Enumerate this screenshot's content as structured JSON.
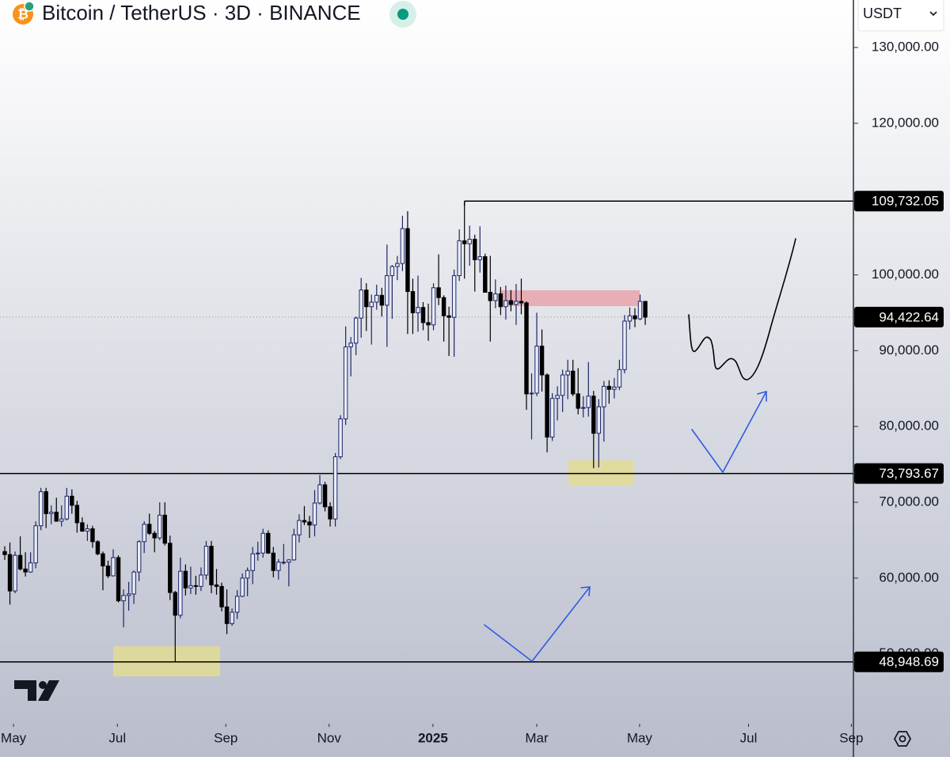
{
  "chart_data": {
    "type": "candlestick",
    "title": "Bitcoin / TetherUS · 3D · BINANCE",
    "currency": "USDT",
    "up_color": "#e9edf9",
    "up_outline": "#1c2466",
    "down_color": "#000000",
    "ylim": [
      40780,
      136260
    ],
    "xlim": [
      -0.92,
      164.3
    ],
    "yticks": [
      {
        "value": 130000,
        "label": "130,000.00"
      },
      {
        "value": 120000,
        "label": "120,000.00"
      },
      {
        "value": 100000,
        "label": "100,000.00"
      },
      {
        "value": 90000,
        "label": "90,000.00"
      },
      {
        "value": 80000,
        "label": "80,000.00"
      },
      {
        "value": 70000,
        "label": "70,000.00"
      },
      {
        "value": 60000,
        "label": "60,000.00"
      },
      {
        "value": 50000,
        "label": "50,000.00"
      }
    ],
    "xticks": [
      {
        "value": 1.7,
        "label": "May"
      },
      {
        "value": 21.8,
        "label": "Jul"
      },
      {
        "value": 42.8,
        "label": "Sep"
      },
      {
        "value": 62.8,
        "label": "Nov"
      },
      {
        "value": 82.9,
        "label": "2025"
      },
      {
        "value": 103,
        "label": "Mar"
      },
      {
        "value": 122.9,
        "label": "May"
      },
      {
        "value": 144,
        "label": "Jul"
      },
      {
        "value": 163.9,
        "label": "Sep"
      }
    ],
    "levels": [
      {
        "value": 109732.05,
        "label": "109,732.05",
        "style": "solid"
      },
      {
        "value": 94422.64,
        "label": "94,422.64",
        "style": "dotted"
      },
      {
        "value": 73793.67,
        "label": "73,793.67",
        "style": "solid"
      },
      {
        "value": 48948.69,
        "label": "48,948.69",
        "style": "solid"
      }
    ],
    "open": [
      63500,
      63100,
      58300,
      63000,
      61200,
      60800,
      62000,
      66900,
      71400,
      68500,
      68700,
      67500,
      67800,
      70800,
      69600,
      67300,
      66200,
      66500,
      64800,
      63200,
      61600,
      60300,
      62700,
      57000,
      57700,
      57900,
      60800,
      64800,
      67100,
      65900,
      65300,
      68300,
      64600,
      58100,
      55100,
      60900,
      58700,
      59000,
      58900,
      60400,
      64200,
      59100,
      58900,
      56200,
      54000,
      55500,
      57600,
      60000,
      61000,
      63200,
      63300,
      65900,
      63300,
      61000,
      62100,
      62100,
      62400,
      65700,
      67600,
      67400,
      67000,
      69900,
      72300,
      69400,
      67800,
      76000,
      81000,
      90500,
      91000,
      94300,
      98000,
      95800,
      96400,
      97300,
      96000,
      99900,
      101100,
      101500,
      106100,
      97800,
      95000,
      95700,
      93700,
      93400,
      98300,
      97000,
      94600,
      94400,
      99900,
      104500,
      104100,
      104700,
      102000,
      102400,
      97700,
      96600,
      97500,
      95800,
      96600,
      96100,
      96500,
      96300,
      84300,
      84400,
      90600,
      86800,
      78600,
      83700,
      84100,
      86800,
      87300,
      84300,
      82400,
      82500,
      84000,
      79100,
      82600,
      85300,
      84900,
      85200,
      87500,
      93900,
      94600,
      94200,
      96500
    ],
    "high": [
      64200,
      64700,
      63500,
      65500,
      63400,
      63400,
      67500,
      71900,
      71900,
      69600,
      70600,
      69600,
      71900,
      71700,
      70200,
      68000,
      67100,
      66900,
      65000,
      63500,
      62300,
      63800,
      63000,
      58500,
      59500,
      61000,
      65000,
      67500,
      68500,
      66200,
      70000,
      70000,
      65600,
      58300,
      62700,
      61800,
      61500,
      60300,
      61400,
      64900,
      64900,
      61200,
      59400,
      58500,
      56000,
      58400,
      60600,
      61400,
      64100,
      64800,
      66500,
      66300,
      64100,
      62500,
      64500,
      62500,
      66500,
      68400,
      69500,
      68200,
      71600,
      73600,
      72700,
      70000,
      76500,
      81500,
      93200,
      91800,
      94500,
      99600,
      98900,
      97400,
      98700,
      98300,
      104000,
      101300,
      102500,
      107800,
      108400,
      99500,
      99900,
      96400,
      96200,
      98900,
      102700,
      97300,
      95800,
      100700,
      106000,
      109732,
      106500,
      105300,
      106400,
      102800,
      102500,
      99400,
      98400,
      98600,
      98000,
      98800,
      99500,
      96500,
      87000,
      95000,
      92800,
      87000,
      84400,
      85300,
      87500,
      88800,
      88800,
      87700,
      84000,
      88500,
      84700,
      83600,
      86000,
      86100,
      86400,
      88800,
      94700,
      95700,
      95600,
      97400,
      96500
    ],
    "low": [
      62400,
      56500,
      58000,
      61000,
      60200,
      60700,
      61300,
      66300,
      66600,
      67100,
      67500,
      66800,
      67600,
      68500,
      66000,
      66100,
      64900,
      64000,
      63000,
      58400,
      60000,
      60200,
      56800,
      53500,
      55700,
      56600,
      59600,
      63300,
      65700,
      63400,
      65000,
      64300,
      57100,
      49000,
      54700,
      57700,
      57900,
      57800,
      58300,
      59800,
      58000,
      57800,
      55600,
      52600,
      53700,
      54600,
      57500,
      57600,
      59200,
      62300,
      62700,
      63200,
      60100,
      59800,
      61800,
      58900,
      62300,
      64700,
      67000,
      65300,
      65500,
      69700,
      68800,
      66800,
      66800,
      75700,
      80200,
      86600,
      89400,
      91700,
      92600,
      90800,
      95400,
      94500,
      90500,
      94200,
      99300,
      100500,
      92200,
      92200,
      92500,
      92700,
      91300,
      92700,
      96000,
      91200,
      89300,
      89200,
      99200,
      99500,
      101200,
      97800,
      100300,
      97700,
      91200,
      95600,
      94700,
      94100,
      95200,
      93400,
      94800,
      82200,
      78300,
      84000,
      84600,
      76600,
      78100,
      80800,
      81900,
      83600,
      84000,
      81600,
      81200,
      81300,
      74500,
      74600,
      78000,
      83000,
      83700,
      84800,
      87000,
      92800,
      93100,
      94000,
      93400
    ],
    "close": [
      63100,
      58300,
      63000,
      61200,
      60800,
      62000,
      66900,
      71400,
      68500,
      68700,
      67500,
      67800,
      70800,
      69600,
      67300,
      66200,
      66500,
      64800,
      63200,
      61600,
      60300,
      62700,
      57000,
      57700,
      57900,
      60800,
      64800,
      67100,
      65900,
      65300,
      68300,
      64600,
      58100,
      55100,
      60900,
      58700,
      59000,
      58900,
      60400,
      64200,
      59100,
      58900,
      56200,
      54000,
      55500,
      57600,
      60000,
      61000,
      63200,
      63300,
      65900,
      63300,
      61000,
      62100,
      62100,
      62400,
      65700,
      67600,
      67400,
      67000,
      69900,
      72300,
      69400,
      67800,
      76000,
      81000,
      90500,
      91000,
      94300,
      98000,
      95800,
      96400,
      97300,
      96000,
      99900,
      101100,
      101500,
      106100,
      97800,
      95000,
      95700,
      93700,
      93400,
      98300,
      97000,
      94600,
      94400,
      99900,
      104500,
      104100,
      104700,
      102000,
      102400,
      97700,
      96600,
      97500,
      95800,
      96600,
      96100,
      96500,
      96300,
      84300,
      84400,
      90600,
      86800,
      78600,
      83700,
      84100,
      86800,
      87300,
      84300,
      82400,
      82500,
      84000,
      79100,
      82600,
      85300,
      84900,
      85200,
      87500,
      93900,
      94600,
      94200,
      96500,
      94422.64
    ]
  }
}
